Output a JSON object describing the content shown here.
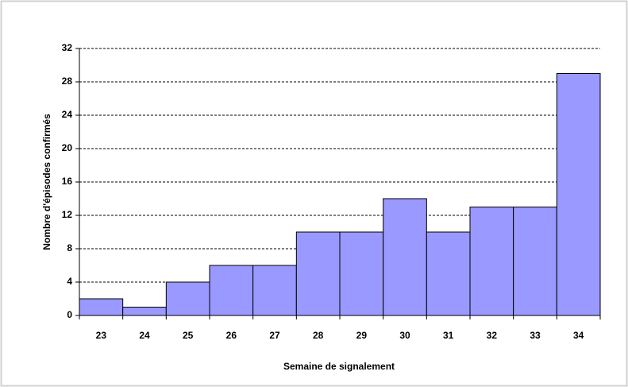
{
  "chart_data": {
    "type": "bar",
    "x_label": "Semaine de signalement",
    "y_label": "Nombre d'épisodes confirmés",
    "categories": [
      "23",
      "24",
      "25",
      "26",
      "27",
      "28",
      "29",
      "30",
      "31",
      "32",
      "33",
      "34"
    ],
    "values": [
      2,
      1,
      4,
      6,
      6,
      10,
      10,
      14,
      10,
      13,
      13,
      29
    ],
    "color": "#9999ff",
    "ylim": [
      0,
      32
    ],
    "yticks": [
      0,
      4,
      8,
      12,
      16,
      20,
      24,
      28,
      32
    ],
    "grid": true
  }
}
